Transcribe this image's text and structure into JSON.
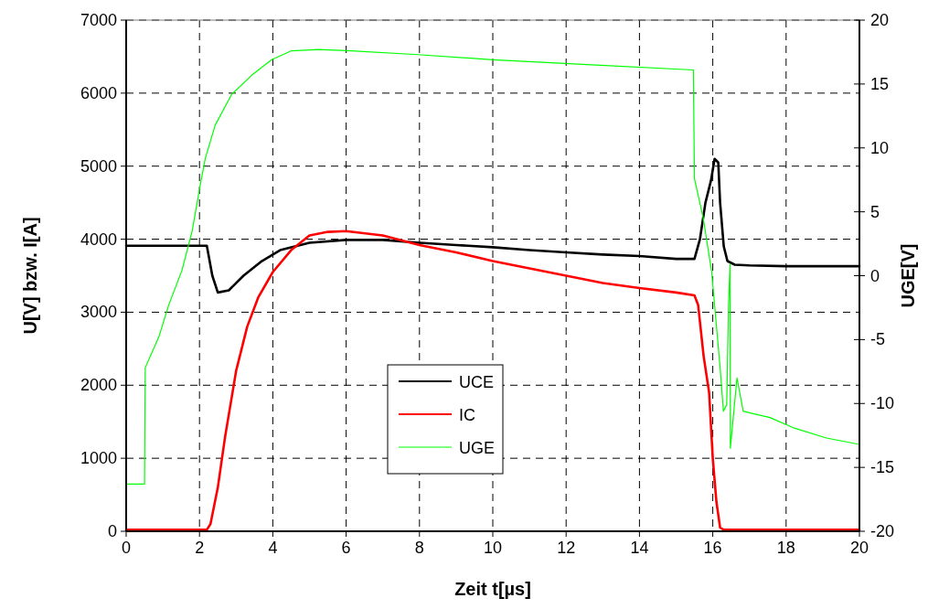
{
  "chart_data": {
    "type": "line",
    "xlabel": "Zeit t[µs]",
    "ylabel": "U[V] bzw. I[A]",
    "y2label": "UGE[V]",
    "xlim": [
      0,
      20
    ],
    "xticks": [
      0,
      2,
      4,
      6,
      8,
      10,
      12,
      14,
      16,
      18,
      20
    ],
    "ylim": [
      0,
      7000
    ],
    "yticks": [
      0,
      1000,
      2000,
      3000,
      4000,
      5000,
      6000,
      7000
    ],
    "y2lim": [
      -20,
      20
    ],
    "y2ticks": [
      -20,
      -15,
      -10,
      -5,
      0,
      5,
      10,
      15,
      20
    ],
    "grid": true,
    "legend": "center",
    "line_style": "solid",
    "marker": "none",
    "series": [
      {
        "name": "UCE",
        "color": "#000000",
        "x": [
          0,
          1,
          2.2,
          2.35,
          2.5,
          2.8,
          3.2,
          3.7,
          4.2,
          5,
          6,
          7,
          8,
          9,
          10,
          11,
          12,
          13,
          14,
          15,
          15.5,
          15.65,
          15.8,
          15.95,
          16.05,
          16.15,
          16.2,
          16.3,
          16.4,
          16.6,
          17,
          18,
          20
        ],
        "values": [
          3910,
          3910,
          3910,
          3500,
          3270,
          3300,
          3500,
          3700,
          3850,
          3950,
          3990,
          3990,
          3950,
          3920,
          3890,
          3850,
          3820,
          3790,
          3770,
          3730,
          3730,
          4000,
          4500,
          4800,
          5100,
          5050,
          4500,
          3900,
          3700,
          3650,
          3640,
          3630,
          3630
        ]
      },
      {
        "name": "IC",
        "color": "#ff0000",
        "x": [
          0,
          1,
          2.2,
          2.3,
          2.5,
          2.7,
          3,
          3.3,
          3.6,
          4,
          4.5,
          5,
          5.5,
          6,
          7,
          8,
          9,
          10,
          11,
          12,
          13,
          14,
          15,
          15.5,
          15.6,
          15.75,
          15.9,
          16,
          16.1,
          16.2,
          16.3,
          18,
          20
        ],
        "values": [
          20,
          20,
          20,
          100,
          600,
          1300,
          2200,
          2800,
          3200,
          3550,
          3850,
          4050,
          4100,
          4110,
          4050,
          3920,
          3820,
          3700,
          3600,
          3500,
          3400,
          3330,
          3270,
          3230,
          3100,
          2400,
          1900,
          1000,
          400,
          50,
          20,
          20,
          20
        ],
        "axis": "y"
      },
      {
        "name": "UGE",
        "color": "#00ff00",
        "axis": "y2",
        "x": [
          0,
          0.5,
          0.52,
          0.89,
          1.16,
          1.52,
          1.8,
          2.02,
          2.16,
          2.43,
          2.88,
          3.43,
          3.97,
          4.51,
          5.24,
          6.15,
          7.96,
          10,
          12.7,
          15.47,
          15.5,
          15.74,
          15.97,
          16.2,
          16.29,
          16.38,
          16.43,
          16.47,
          16.48,
          16.66,
          16.83,
          17.1,
          17.56,
          18.2,
          19.1,
          20
        ],
        "values": [
          -16.3,
          -16.3,
          -7.2,
          -4.8,
          -2.3,
          0.4,
          3.5,
          7.1,
          9.2,
          11.8,
          14.2,
          15.7,
          16.9,
          17.6,
          17.7,
          17.6,
          17.3,
          16.9,
          16.5,
          16.1,
          7.6,
          4.5,
          0.3,
          -7.2,
          -10.6,
          -10.1,
          -2.3,
          0.9,
          -13.5,
          -8,
          -10.6,
          -10.8,
          -11.1,
          -11.9,
          -12.7,
          -13.2
        ]
      }
    ]
  }
}
